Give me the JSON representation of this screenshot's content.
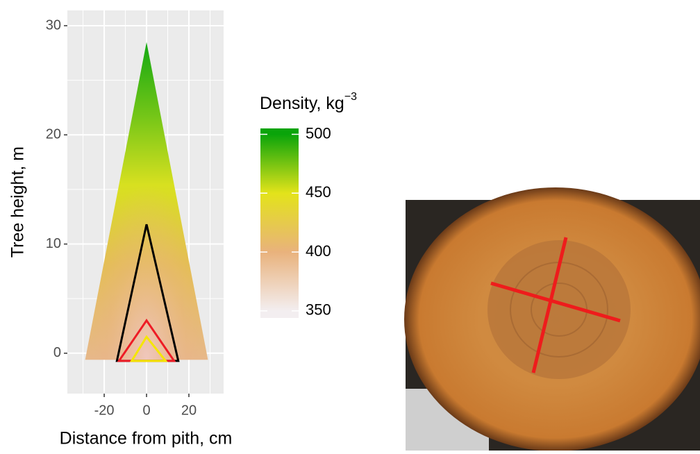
{
  "chart_data": {
    "type": "cone",
    "x_label": "Distance from pith, cm",
    "y_label": "Tree height, m",
    "xlim": [
      -37.4,
      36.4
    ],
    "xticks": [
      -20,
      0,
      20
    ],
    "minor_xticks": [
      -30,
      -10,
      10,
      30
    ],
    "ylim": [
      -3.7,
      31.4
    ],
    "yticks": [
      0,
      10,
      20,
      30
    ],
    "minor_yticks": [
      5,
      15,
      25
    ],
    "grid": true,
    "outline": {
      "x": [
        -29,
        0,
        29
      ],
      "y": [
        -0.6,
        28.5,
        -0.6
      ]
    },
    "series": [
      {
        "color": "#000000",
        "x": [
          -14,
          0,
          15
        ],
        "y": [
          -0.7,
          11.8,
          -0.7
        ]
      },
      {
        "color": "#ee1c25",
        "x": [
          -13,
          0,
          13
        ],
        "y": [
          -0.7,
          3,
          -0.7
        ]
      },
      {
        "color": "#f5e600",
        "x": [
          -7,
          0,
          9
        ],
        "y": [
          -0.7,
          1.5,
          -0.7
        ]
      }
    ],
    "legend": {
      "title": "Density, kg",
      "title_superscript": "−3",
      "lim": [
        344,
        505
      ],
      "ticks": [
        350,
        400,
        450,
        500
      ],
      "colors": [
        "#f3eef0",
        "#e9b27c",
        "#e3e31a",
        "#0aa40a"
      ]
    }
  }
}
